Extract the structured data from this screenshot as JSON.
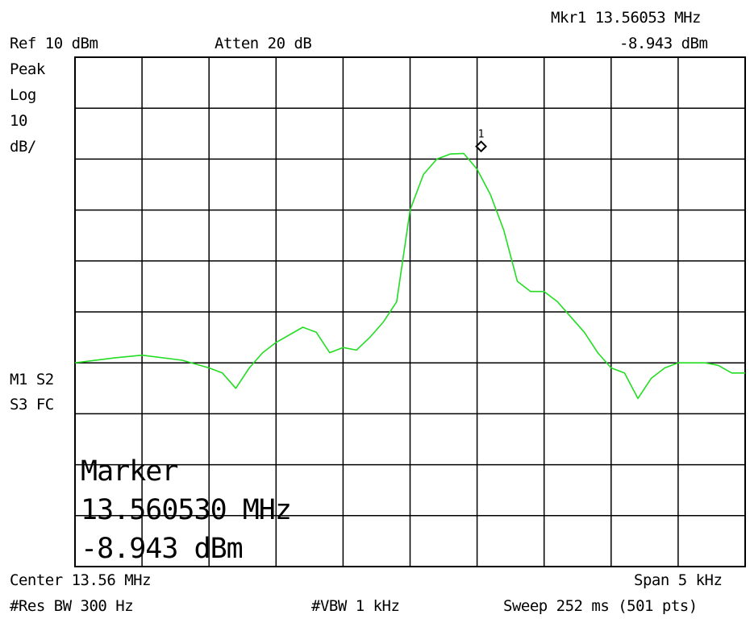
{
  "header": {
    "ref_level": "Ref 10 dBm",
    "attenuation": "Atten 20 dB",
    "marker_readout_freq": "Mkr1  13.56053 MHz",
    "marker_readout_amp": "-8.943 dBm"
  },
  "left_panel": {
    "detector": "Peak",
    "scale_type": "Log",
    "scale_value": "10",
    "scale_unit": "dB/",
    "trace_flags_1": "M1 S2",
    "trace_flags_2": "S3 FC"
  },
  "marker_box": {
    "title": "Marker",
    "frequency": "13.560530 MHz",
    "amplitude": "-8.943 dBm"
  },
  "footer": {
    "center": "Center 13.56 MHz",
    "span": "Span 5 kHz",
    "res_bw": "#Res BW 300 Hz",
    "vbw": "#VBW 1 kHz",
    "sweep": "Sweep 252 ms (501 pts)"
  },
  "chart_data": {
    "type": "line",
    "xlabel": "",
    "ylabel": "",
    "xlim": [
      13.5575,
      13.5625
    ],
    "ylim": [
      -90,
      10
    ],
    "x_unit": "MHz",
    "y_unit": "dBm",
    "grid": true,
    "trace_color": "#22dd22",
    "series": [
      {
        "x": [
          13.5575,
          13.5578,
          13.558,
          13.5583,
          13.5585,
          13.5586,
          13.5587,
          13.5588,
          13.5589,
          13.559,
          13.5592,
          13.5593,
          13.5594,
          13.5595,
          13.5596,
          13.5597,
          13.5598,
          13.5599,
          13.56,
          13.5601,
          13.5602,
          13.5603,
          13.5604,
          13.5605,
          13.5606,
          13.5607,
          13.5608,
          13.5609,
          13.561,
          13.5611,
          13.5612,
          13.5613,
          13.5614,
          13.5615,
          13.5616,
          13.5617,
          13.5618,
          13.5619,
          13.562,
          13.5621,
          13.5622,
          13.5623,
          13.5624,
          13.5625
        ],
        "y": [
          -50,
          -49,
          -48.5,
          -49.5,
          -51,
          -52,
          -55,
          -51,
          -48,
          -46,
          -43,
          -44,
          -48,
          -47,
          -47.5,
          -45,
          -42,
          -38,
          -20,
          -13,
          -10,
          -9,
          -8.9,
          -12,
          -17,
          -24,
          -34,
          -36,
          -36,
          -38,
          -41,
          -44,
          -48,
          -51,
          -52,
          -57,
          -53,
          -51,
          -50,
          -50,
          -50,
          -50.5,
          -52,
          -52
        ]
      }
    ],
    "markers": [
      {
        "label": "1",
        "x": 13.56053,
        "y": -8.943
      }
    ]
  }
}
